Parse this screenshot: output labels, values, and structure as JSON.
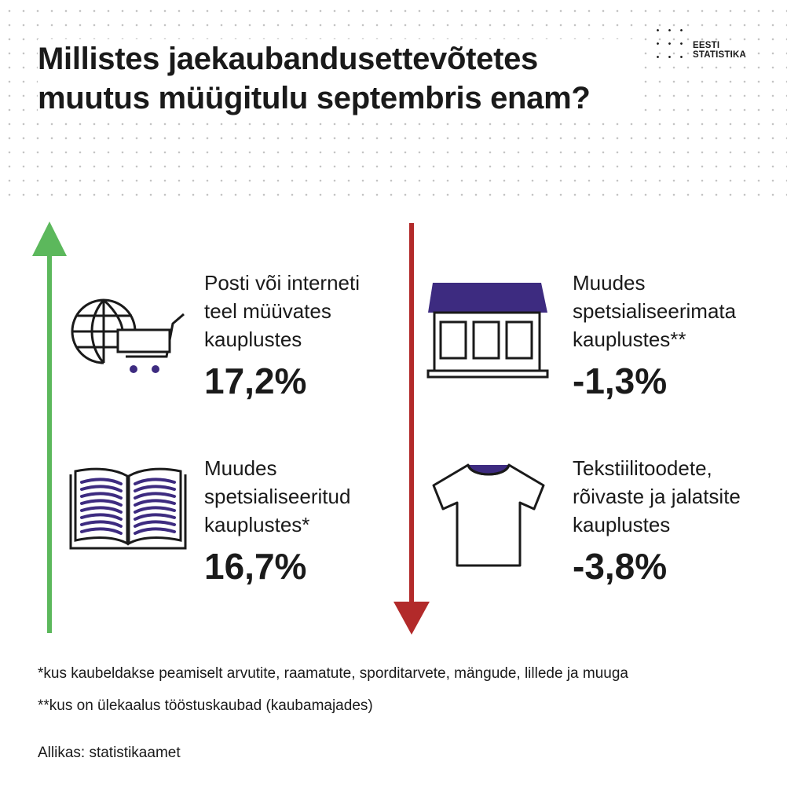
{
  "title": "Millistes jaekaubandusettevõtetes muutus müügitulu septembris enam?",
  "logo": {
    "line1": "EESTI",
    "line2": "STATISTIKA"
  },
  "colors": {
    "up": "#5cb85c",
    "down": "#b22a2a",
    "accent": "#3d2b80",
    "text": "#1a1a1a"
  },
  "categories": [
    {
      "label": "Posti või interneti\nteel müüvates\nkauplustes",
      "value": "17,2%",
      "icon": "globe-cart-icon"
    },
    {
      "label": "Muudes\nspetsialiseeritud\nkauplustes*",
      "value": "16,7%",
      "icon": "open-book-icon"
    },
    {
      "label": "Muudes\nspetsialiseerimata\nkauplustes**",
      "value": "-1,3%",
      "icon": "store-icon"
    },
    {
      "label": "Tekstiilitoodete,\nrõivaste ja jalatsite\nkauplustes",
      "value": "-3,8%",
      "icon": "t-shirt-icon"
    }
  ],
  "footnotes": [
    "*kus kaubeldakse peamiselt arvutite, raamatute, sporditarvete, mängude, lillede ja muuga",
    "**kus on ülekaalus tööstuskaubad (kaubamajades)"
  ],
  "source": "Allikas: statistikaamet"
}
